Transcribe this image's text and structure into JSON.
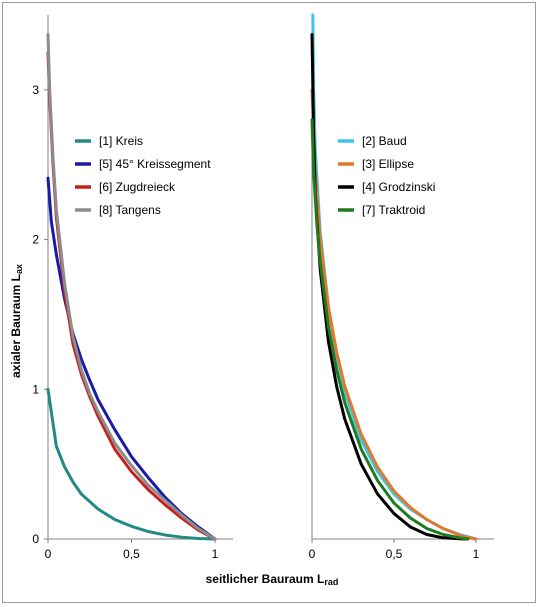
{
  "chart_data": [
    {
      "type": "line",
      "xlim": [
        0,
        1
      ],
      "ylim": [
        0,
        3.5
      ],
      "xticks": [
        0,
        0.5,
        1
      ],
      "xtick_labels": [
        "0",
        "0,5",
        "1"
      ],
      "yticks": [
        0,
        1,
        2,
        3
      ],
      "ytick_labels": [
        "0",
        "1",
        "2",
        "3"
      ],
      "ylabel": "axialer Bauraum L",
      "ylabel_sub": "ax",
      "grid": false,
      "legend_position": "upper-middle",
      "series": [
        {
          "name": "[1] Kreis",
          "color": "#218a85",
          "x": [
            0,
            0.05,
            0.1,
            0.15,
            0.2,
            0.3,
            0.4,
            0.5,
            0.6,
            0.7,
            0.8,
            0.9,
            1.0
          ],
          "y": [
            1.0,
            0.62,
            0.48,
            0.38,
            0.3,
            0.2,
            0.13,
            0.085,
            0.05,
            0.027,
            0.012,
            0.003,
            0
          ]
        },
        {
          "name": "[5] 45° Kreissegment",
          "color": "#1a1aa6",
          "x": [
            0,
            0.02,
            0.05,
            0.1,
            0.15,
            0.2,
            0.25,
            0.3,
            0.4,
            0.5,
            0.6,
            0.7,
            0.8,
            0.9,
            1.0
          ],
          "y": [
            2.41,
            2.12,
            1.9,
            1.6,
            1.37,
            1.2,
            1.06,
            0.93,
            0.73,
            0.55,
            0.41,
            0.28,
            0.17,
            0.08,
            0
          ]
        },
        {
          "name": "[6] Zugdreieck",
          "color": "#c9201e",
          "x": [
            0,
            0.01,
            0.03,
            0.05,
            0.1,
            0.15,
            0.2,
            0.25,
            0.3,
            0.4,
            0.5,
            0.6,
            0.7,
            0.8,
            0.9,
            1.0
          ],
          "y": [
            3.25,
            2.95,
            2.5,
            2.15,
            1.65,
            1.3,
            1.1,
            0.95,
            0.82,
            0.6,
            0.45,
            0.33,
            0.23,
            0.14,
            0.06,
            0
          ]
        },
        {
          "name": "[8] Tangens",
          "color": "#8c8c8c",
          "x": [
            0,
            0.01,
            0.03,
            0.05,
            0.1,
            0.15,
            0.2,
            0.25,
            0.3,
            0.4,
            0.5,
            0.6,
            0.7,
            0.8,
            0.9,
            1.0
          ],
          "y": [
            3.37,
            3.0,
            2.55,
            2.2,
            1.7,
            1.35,
            1.13,
            0.97,
            0.85,
            0.64,
            0.49,
            0.36,
            0.26,
            0.16,
            0.07,
            0
          ]
        }
      ]
    },
    {
      "type": "line",
      "xlim": [
        0,
        1
      ],
      "ylim": [
        0,
        3.5
      ],
      "xticks": [
        0,
        0.5,
        1
      ],
      "xtick_labels": [
        "0",
        "0,5",
        "1"
      ],
      "xlabel": "seitlicher Bauraum L",
      "xlabel_sub": "rad",
      "grid": false,
      "legend_position": "upper-middle",
      "series": [
        {
          "name": "[2] Baud",
          "color": "#3cc6e6",
          "x": [
            0.005,
            0.01,
            0.02,
            0.05,
            0.1,
            0.15,
            0.2,
            0.3,
            0.4,
            0.5,
            0.6,
            0.7,
            0.8,
            0.9,
            0.95,
            1.0
          ],
          "y": [
            3.5,
            3.0,
            2.6,
            2.05,
            1.55,
            1.22,
            0.98,
            0.66,
            0.45,
            0.3,
            0.2,
            0.13,
            0.07,
            0.03,
            0.015,
            0
          ]
        },
        {
          "name": "[3] Ellipse",
          "color": "#e2782c",
          "x": [
            0,
            0.02,
            0.05,
            0.1,
            0.15,
            0.2,
            0.3,
            0.4,
            0.5,
            0.6,
            0.7,
            0.8,
            0.9,
            0.95,
            1.0
          ],
          "y": [
            3.0,
            2.45,
            2.0,
            1.55,
            1.25,
            1.02,
            0.7,
            0.48,
            0.32,
            0.21,
            0.13,
            0.07,
            0.025,
            0.01,
            0
          ]
        },
        {
          "name": "[4] Grodzinski",
          "color": "#000000",
          "x": [
            0,
            0.01,
            0.02,
            0.05,
            0.1,
            0.15,
            0.2,
            0.3,
            0.4,
            0.5,
            0.6,
            0.7,
            0.8,
            0.9,
            0.95
          ],
          "y": [
            3.37,
            2.7,
            2.3,
            1.8,
            1.32,
            1.02,
            0.8,
            0.5,
            0.3,
            0.17,
            0.08,
            0.03,
            0.008,
            0.002,
            0
          ]
        },
        {
          "name": "[7] Traktroid",
          "color": "#207a20",
          "x": [
            0,
            0.01,
            0.03,
            0.05,
            0.1,
            0.15,
            0.2,
            0.3,
            0.4,
            0.5,
            0.6,
            0.7,
            0.8,
            0.9,
            0.95
          ],
          "y": [
            2.8,
            2.45,
            2.1,
            1.85,
            1.42,
            1.13,
            0.91,
            0.6,
            0.39,
            0.24,
            0.14,
            0.07,
            0.03,
            0.008,
            0
          ]
        }
      ]
    }
  ]
}
